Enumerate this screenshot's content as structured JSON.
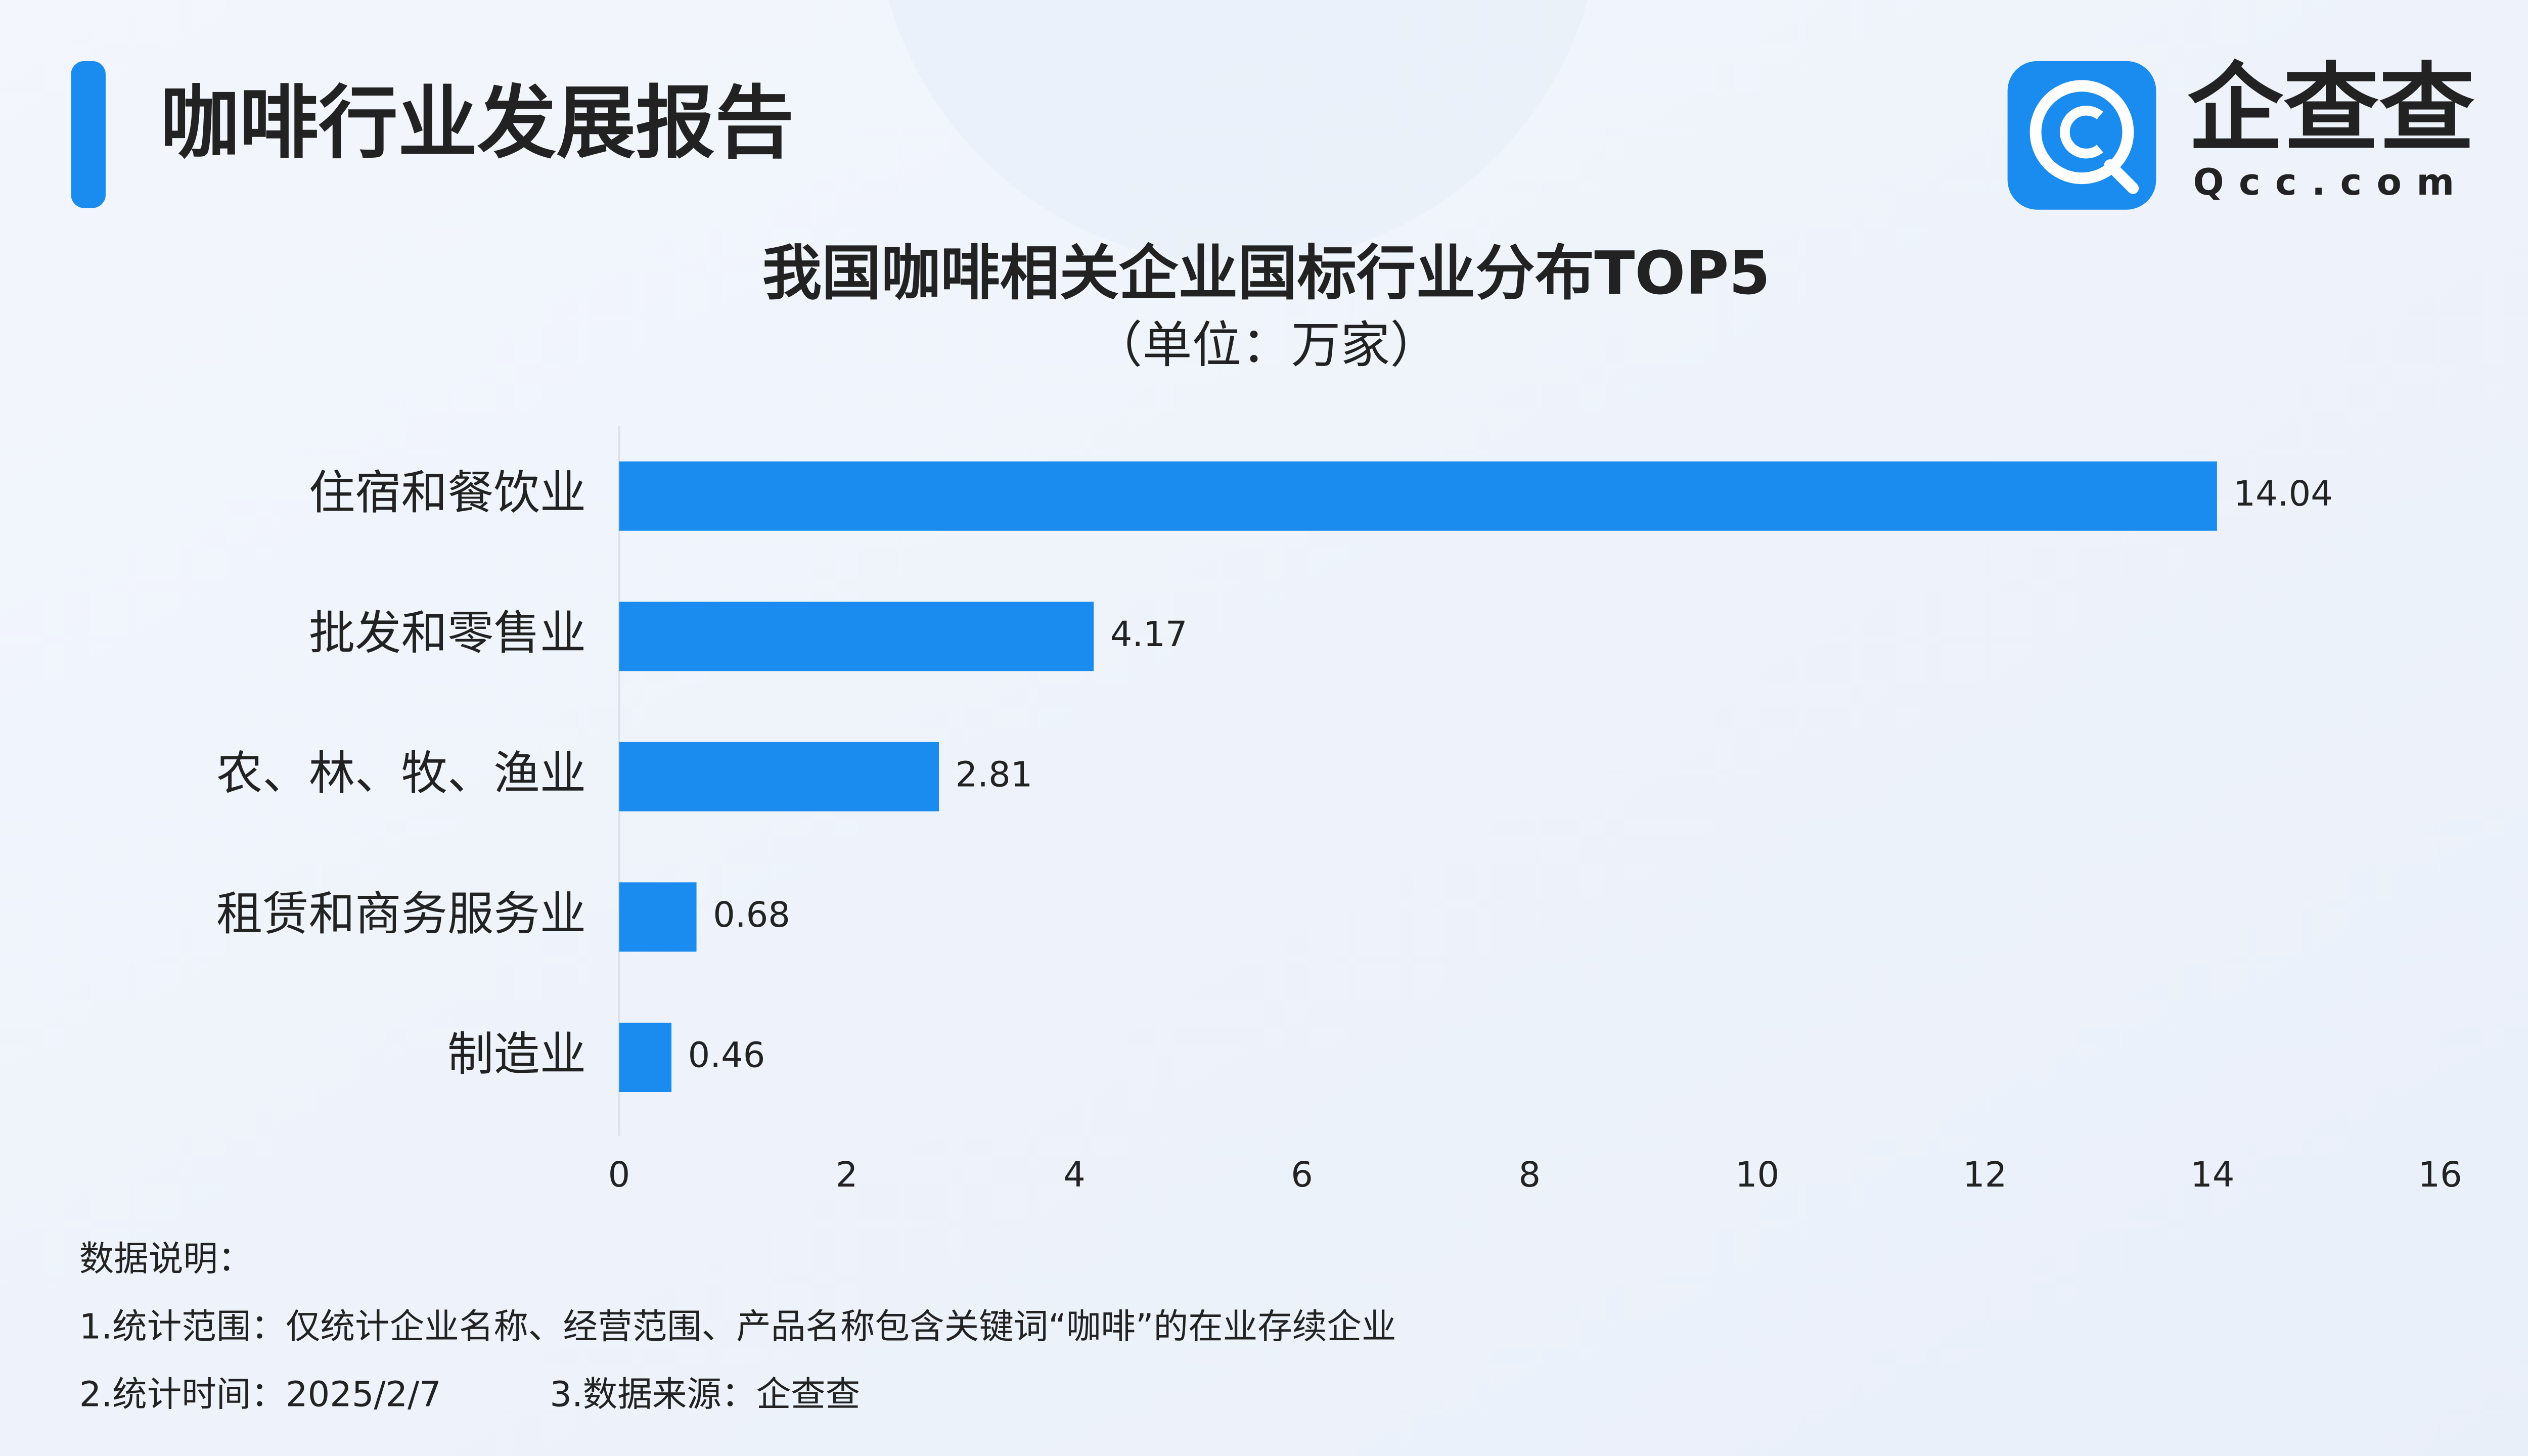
{
  "header": {
    "title": "咖啡行业发展报告"
  },
  "logo": {
    "name": "企查查",
    "domain": "Qcc.com"
  },
  "chart_data": {
    "type": "bar",
    "title": "我国咖啡相关企业国标行业分布TOP5",
    "subtitle": "（单位：万家）",
    "categories": [
      "住宿和餐饮业",
      "批发和零售业",
      "农、林、牧、渔业",
      "租赁和商务服务业",
      "制造业"
    ],
    "values": [
      14.04,
      4.17,
      2.81,
      0.68,
      0.46
    ],
    "color": "#1a8cf0",
    "xlim": [
      0,
      16
    ],
    "xticks": [
      0,
      2,
      4,
      6,
      8,
      10,
      12,
      14,
      16
    ],
    "grid": false
  },
  "notes": {
    "heading": "数据说明：",
    "scope": "1.统计范围：仅统计企业名称、经营范围、产品名称包含关键词“咖啡”的在业存续企业",
    "time": "2.统计时间：2025/2/7",
    "source": "3.数据来源：企查查"
  }
}
